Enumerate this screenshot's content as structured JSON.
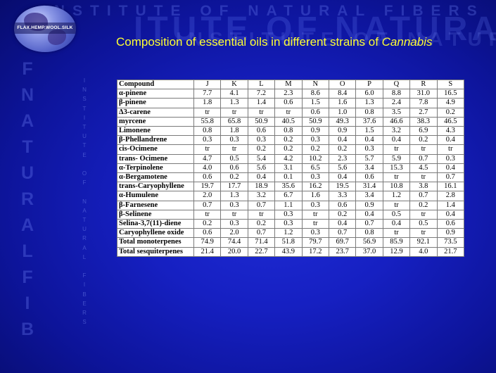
{
  "watermark": {
    "line1": "INSTITUTE OF NATURAL FIBERS",
    "line2": "ITUTE OF NATURAL FIBE",
    "line3": "INSTITUTE OF NATURAL",
    "vertical_big": [
      "F",
      "N",
      "A",
      "T",
      "U",
      "R",
      "A",
      "L",
      "F",
      "I",
      "B"
    ],
    "vertical_small": [
      "I",
      "N",
      "S",
      "T",
      "I",
      "T",
      "U",
      "T",
      "E",
      "",
      "O",
      "F",
      "",
      "N",
      "A",
      "T",
      "U",
      "R",
      "A",
      "L",
      "",
      "F",
      "I",
      "B",
      "E",
      "R",
      "S"
    ]
  },
  "logo": {
    "text": "FLAX.HEMP.WOOL.SILK"
  },
  "title": {
    "prefix": "Composition of essential oils in different strains of ",
    "italic": "Cannabis"
  },
  "table": {
    "headers": [
      "Compound",
      "J",
      "K",
      "L",
      "M",
      "N",
      "O",
      "P",
      "Q",
      "R",
      "S"
    ],
    "rows": [
      {
        "name": "α-pinene",
        "values": [
          "7.7",
          "4.1",
          "7.2",
          "2.3",
          "8.6",
          "8.4",
          "6.0",
          "8.8",
          "31.0",
          "16.5"
        ]
      },
      {
        "name": "β-pinene",
        "values": [
          "1.8",
          "1.3",
          "1.4",
          "0.6",
          "1.5",
          "1.6",
          "1.3",
          "2.4",
          "7.8",
          "4.9"
        ]
      },
      {
        "name": "Δ3-carene",
        "values": [
          "tr",
          "tr",
          "tr",
          "tr",
          "0.6",
          "1.0",
          "0.8",
          "3.5",
          "2.7",
          "0.2"
        ]
      },
      {
        "name": "myrcene",
        "values": [
          "55.8",
          "65.8",
          "50.9",
          "40.5",
          "50.9",
          "49.3",
          "37.6",
          "46.6",
          "38.3",
          "46.5"
        ]
      },
      {
        "name": "Limonene",
        "values": [
          "0.8",
          "1.8",
          "0.6",
          "0.8",
          "0.9",
          "0.9",
          "1.5",
          "3.2",
          "6.9",
          "4.3"
        ]
      },
      {
        "name": "β-Phellandrene",
        "values": [
          "0.3",
          "0.3",
          "0.3",
          "0.2",
          "0.3",
          "0.4",
          "0.4",
          "0.4",
          "0.2",
          "0.4"
        ]
      },
      {
        "name": "cis-Ocimene",
        "values": [
          "tr",
          "tr",
          "0.2",
          "0.2",
          "0.2",
          "0.2",
          "0.3",
          "tr",
          "tr",
          "tr"
        ]
      },
      {
        "name": "trans- Ocimene",
        "values": [
          "4.7",
          "0.5",
          "5.4",
          "4.2",
          "10.2",
          "2.3",
          "5.7",
          "5.9",
          "0.7",
          "0.3"
        ]
      },
      {
        "name": "α-Terpinolene",
        "values": [
          "4.0",
          "0.6",
          "5.6",
          "3.1",
          "6.5",
          "5.6",
          "3.4",
          "15.3",
          "4.5",
          "0.4"
        ]
      },
      {
        "name": "α-Bergamotene",
        "values": [
          "0.6",
          "0.2",
          "0.4",
          "0.1",
          "0.3",
          "0.4",
          "0.6",
          "tr",
          "tr",
          "0.7"
        ]
      },
      {
        "name": "trans-Caryophyllene",
        "values": [
          "19.7",
          "17.7",
          "18.9",
          "35.6",
          "16.2",
          "19.5",
          "31.4",
          "10.8",
          "3.8",
          "16.1"
        ]
      },
      {
        "name": "α-Humulene",
        "values": [
          "2.0",
          "1.3",
          "3.2",
          "6.7",
          "1.6",
          "3.3",
          "3.4",
          "1.2",
          "0.7",
          "2.8"
        ]
      },
      {
        "name": "β-Farnesene",
        "values": [
          "0.7",
          "0.3",
          "0.7",
          "1.1",
          "0.3",
          "0.6",
          "0.9",
          "tr",
          "0.2",
          "1.4"
        ]
      },
      {
        "name": "β-Selinene",
        "values": [
          "tr",
          "tr",
          "tr",
          "0.3",
          "tr",
          "0.2",
          "0.4",
          "0.5",
          "tr",
          "0.4"
        ]
      },
      {
        "name": "Selina-3,7(11)-diene",
        "values": [
          "0.2",
          "0.3",
          "0.2",
          "0.3",
          "tr",
          "0.4",
          "0.7",
          "0.4",
          "0.5",
          "0.6"
        ]
      },
      {
        "name": "Caryophyllene oxide",
        "values": [
          "0.6",
          "2.0",
          "0.7",
          "1.2",
          "0.3",
          "0.7",
          "0.8",
          "tr",
          "tr",
          "0.9"
        ]
      },
      {
        "name": "Total monoterpenes",
        "values": [
          "74.9",
          "74.4",
          "71.4",
          "51.8",
          "79.7",
          "69.7",
          "56.9",
          "85.9",
          "92.1",
          "73.5"
        ]
      },
      {
        "name": "Total sesquiterpenes",
        "values": [
          "21.4",
          "20.0",
          "22.7",
          "43.9",
          "17.2",
          "23.7",
          "37.0",
          "12.9",
          "4.0",
          "21.7"
        ]
      }
    ]
  }
}
